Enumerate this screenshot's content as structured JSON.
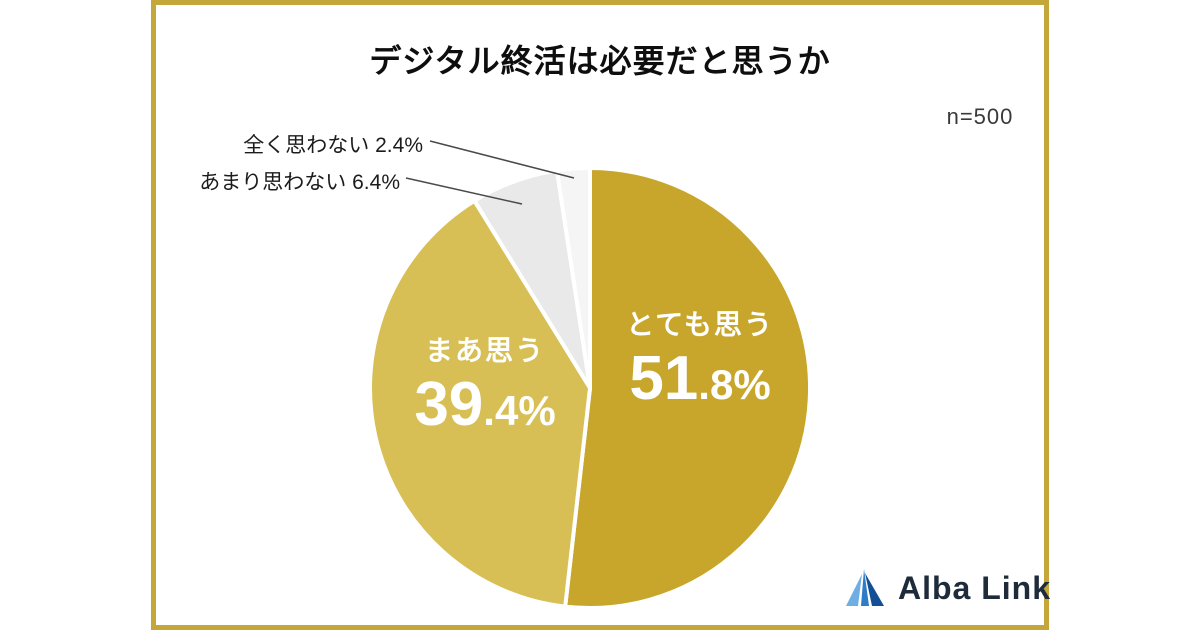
{
  "header": {
    "title": "デジタル終活は必要だと思うか",
    "sample_size": "n=500"
  },
  "chart_data": {
    "type": "pie",
    "title": "デジタル終活は必要だと思うか",
    "sample_label": "n=500",
    "unit": "%",
    "start_angle": "12-oclock",
    "direction": "clockwise",
    "legend_position": "none",
    "slices": [
      {
        "key": "strongly-think",
        "label": "とても思う",
        "value": 51.8,
        "color": "#C7A62B",
        "label_position": "inside",
        "text_color": "#FFFFFF"
      },
      {
        "key": "somewhat-think",
        "label": "まあ思う",
        "value": 39.4,
        "color": "#D7BF55",
        "label_position": "inside",
        "text_color": "#FFFFFF"
      },
      {
        "key": "not-really-think",
        "label": "あまり思わない",
        "value": 6.4,
        "color": "#E9E9E9",
        "label_position": "callout",
        "text_color": "#1C1C1C"
      },
      {
        "key": "not-at-all-think",
        "label": "全く思わない",
        "value": 2.4,
        "color": "#F5F5F5",
        "label_position": "callout",
        "text_color": "#1C1C1C"
      }
    ]
  },
  "frame": {
    "border_color": "#C5A63A"
  },
  "logo": {
    "text": "Alba Link",
    "icon": "sail-triangle-icon",
    "icon_colors": [
      "#6FAEE3",
      "#2E7BC6",
      "#124F96"
    ],
    "text_color": "#1D2B3A"
  }
}
